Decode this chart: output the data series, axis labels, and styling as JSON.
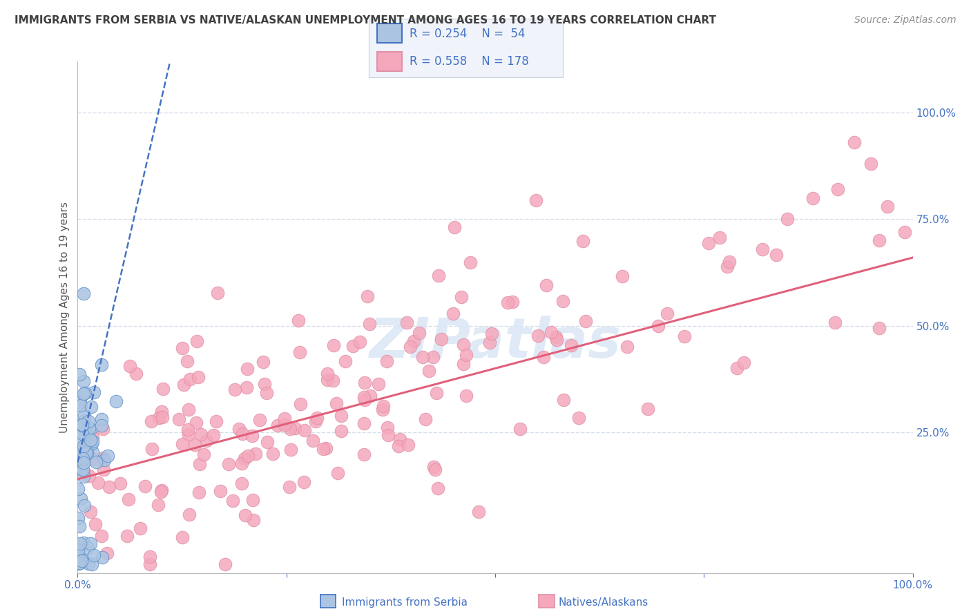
{
  "title": "IMMIGRANTS FROM SERBIA VS NATIVE/ALASKAN UNEMPLOYMENT AMONG AGES 16 TO 19 YEARS CORRELATION CHART",
  "source": "Source: ZipAtlas.com",
  "ylabel": "Unemployment Among Ages 16 to 19 years",
  "xlim": [
    0,
    1.0
  ],
  "ylim": [
    -0.08,
    1.12
  ],
  "x_tick_labels": [
    "0.0%",
    "",
    "",
    "",
    "100.0%"
  ],
  "x_tick_values": [
    0,
    0.25,
    0.5,
    0.75,
    1.0
  ],
  "y_tick_labels": [
    "25.0%",
    "50.0%",
    "75.0%",
    "100.0%"
  ],
  "y_tick_values": [
    0.25,
    0.5,
    0.75,
    1.0
  ],
  "legend_r_blue": "0.254",
  "legend_n_blue": "54",
  "legend_r_pink": "0.558",
  "legend_n_pink": "178",
  "blue_color": "#aac4e2",
  "pink_color": "#f5a8bc",
  "blue_line_color": "#4472c4",
  "pink_line_color": "#e0607a",
  "title_color": "#404040",
  "source_color": "#909090",
  "label_color": "#4472c4",
  "grid_color": "#d5dde8",
  "background_color": "#ffffff",
  "watermark_color": "#dce8f5",
  "legend_bg": "#f0f4fa"
}
